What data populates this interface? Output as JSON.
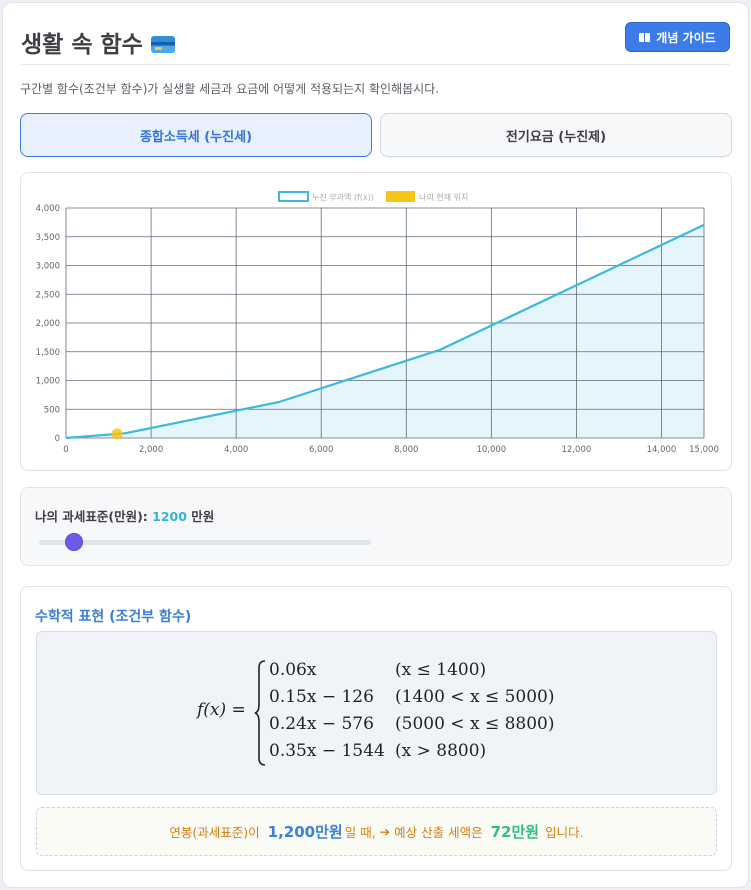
{
  "header": {
    "title": "생활 속 함수",
    "guide_button_label": "개념 가이드"
  },
  "description": "구간별 함수(조건부 함수)가 실생활 세금과 요금에 어떻게 적용되는지 확인해봅시다.",
  "tabs": [
    {
      "label": "종합소득세 (누진세)",
      "active": true
    },
    {
      "label": "전기요금 (누진제)",
      "active": false
    }
  ],
  "colors": {
    "accent": "#3d7be8",
    "line": "#3db8e0",
    "area": "#e5f5fc",
    "point": "#f5c518",
    "slider_thumb": "#6c5ce7",
    "result_orange": "#d67f10",
    "result_green": "#2ec27e"
  },
  "chart_data": {
    "type": "line",
    "legend": [
      {
        "name": "누진 부과액 (f(x))",
        "style": "outlined-box"
      },
      {
        "name": "나의 현재 위치",
        "style": "filled-box"
      }
    ],
    "legend_placement": "top-center",
    "xlim": [
      0,
      15000
    ],
    "ylim": [
      0,
      4000
    ],
    "x_ticks": [
      0,
      2000,
      4000,
      6000,
      8000,
      10000,
      12000,
      14000,
      15000
    ],
    "x_tick_labels": [
      "0",
      "2,000",
      "4,000",
      "6,000",
      "8,000",
      "10,000",
      "12,000",
      "14,000",
      "15,000"
    ],
    "y_ticks": [
      0,
      500,
      1000,
      1500,
      2000,
      2500,
      3000,
      3500,
      4000
    ],
    "y_tick_labels": [
      "0",
      "500",
      "1,000",
      "1,500",
      "2,000",
      "2,500",
      "3,000",
      "3,500",
      "4,000"
    ],
    "grid": true,
    "series": [
      {
        "name": "누진 부과액 (f(x))",
        "x": [
          0,
          1400,
          5000,
          8800,
          15000
        ],
        "y": [
          0,
          84,
          624,
          1536,
          3706
        ],
        "filled": true
      },
      {
        "name": "나의 현재 위치",
        "x": [
          1200
        ],
        "y": [
          72
        ],
        "type": "point"
      }
    ]
  },
  "slider": {
    "label": "나의 과세표준(만원):",
    "value": "1200",
    "unit": "만원",
    "min": 0,
    "max": 15000,
    "current": 1200
  },
  "math": {
    "title": "수학적 표현 (조건부 함수)",
    "lhs": "f(x) =",
    "cases": [
      {
        "expr": "0.06x",
        "cond": "(x ≤ 1400)"
      },
      {
        "expr": "0.15x − 126",
        "cond": "(1400 < x ≤ 5000)"
      },
      {
        "expr": "0.24x − 576",
        "cond": "(5000 < x ≤ 8800)"
      },
      {
        "expr": "0.35x − 1544",
        "cond": "(x > 8800)"
      }
    ]
  },
  "result": {
    "prefix": "연봉(과세표준)이",
    "income": "1,200만원",
    "middle": "일 때,",
    "arrow": "➔",
    "middle2": "예상 산출 세액은",
    "tax": "72만원",
    "suffix": "입니다."
  }
}
